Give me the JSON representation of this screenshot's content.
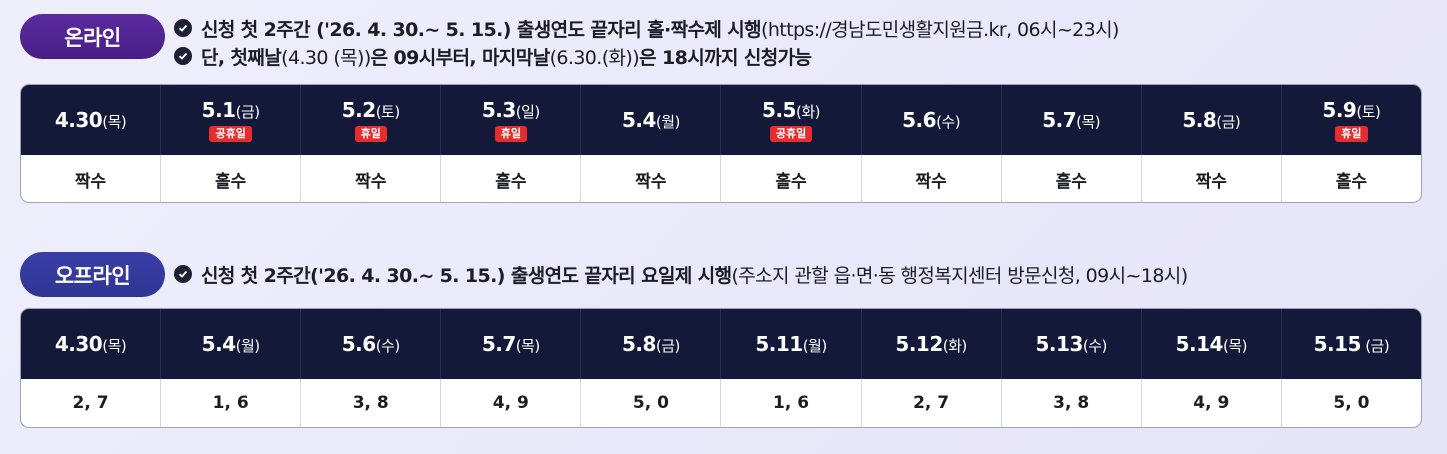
{
  "online": {
    "pill_label": "온라인",
    "note1_bold": "신청 첫 2주간 ('26. 4. 30.~ 5. 15.) 출생연도 끝자리 홀·짝수제 시행",
    "note1_reg": "(https://경남도민생활지원금.kr, 06시~23시)",
    "note2_a": "단, 첫째날",
    "note2_b": "(4.30 (목))",
    "note2_c": "은 09시부터, 마지막날",
    "note2_d": "(6.30.(화))",
    "note2_e": "은 18시까지 신청가능",
    "columns": [
      {
        "date": "4.30",
        "dow": "(목)",
        "badge": "",
        "value": "짝수"
      },
      {
        "date": "5.1",
        "dow": "(금)",
        "badge": "공휴일",
        "value": "홀수"
      },
      {
        "date": "5.2",
        "dow": "(토)",
        "badge": "휴일",
        "value": "짝수"
      },
      {
        "date": "5.3",
        "dow": "(일)",
        "badge": "휴일",
        "value": "홀수"
      },
      {
        "date": "5.4",
        "dow": "(월)",
        "badge": "",
        "value": "짝수"
      },
      {
        "date": "5.5",
        "dow": "(화)",
        "badge": "공휴일",
        "value": "홀수"
      },
      {
        "date": "5.6",
        "dow": "(수)",
        "badge": "",
        "value": "짝수"
      },
      {
        "date": "5.7",
        "dow": "(목)",
        "badge": "",
        "value": "홀수"
      },
      {
        "date": "5.8",
        "dow": "(금)",
        "badge": "",
        "value": "짝수"
      },
      {
        "date": "5.9",
        "dow": "(토)",
        "badge": "휴일",
        "value": "홀수"
      }
    ]
  },
  "offline": {
    "pill_label": "오프라인",
    "note1_bold": "신청 첫 2주간('26. 4. 30.~ 5. 15.) 출생연도 끝자리 요일제 시행",
    "note1_reg": "(주소지 관할 읍·면·동 행정복지센터 방문신청, 09시~18시)",
    "columns": [
      {
        "date": "4.30",
        "dow": "(목)",
        "value": "2, 7"
      },
      {
        "date": "5.4",
        "dow": "(월)",
        "value": "1, 6"
      },
      {
        "date": "5.6",
        "dow": "(수)",
        "value": "3, 8"
      },
      {
        "date": "5.7",
        "dow": "(목)",
        "value": "4, 9"
      },
      {
        "date": "5.8",
        "dow": "(금)",
        "value": "5, 0"
      },
      {
        "date": "5.11",
        "dow": "(월)",
        "value": "1, 6"
      },
      {
        "date": "5.12",
        "dow": "(화)",
        "value": "2, 7"
      },
      {
        "date": "5.13",
        "dow": "(수)",
        "value": "3, 8"
      },
      {
        "date": "5.14",
        "dow": "(목)",
        "value": "4, 9"
      },
      {
        "date": "5.15",
        "dow": " (금)",
        "value": "5, 0"
      }
    ]
  },
  "icons": {
    "note_bullet": "check-circle-icon"
  },
  "colors": {
    "header_bg": "#14193a",
    "badge": "#e52d2d",
    "online_pill": "#4f2391",
    "offline_pill": "#34399d"
  }
}
